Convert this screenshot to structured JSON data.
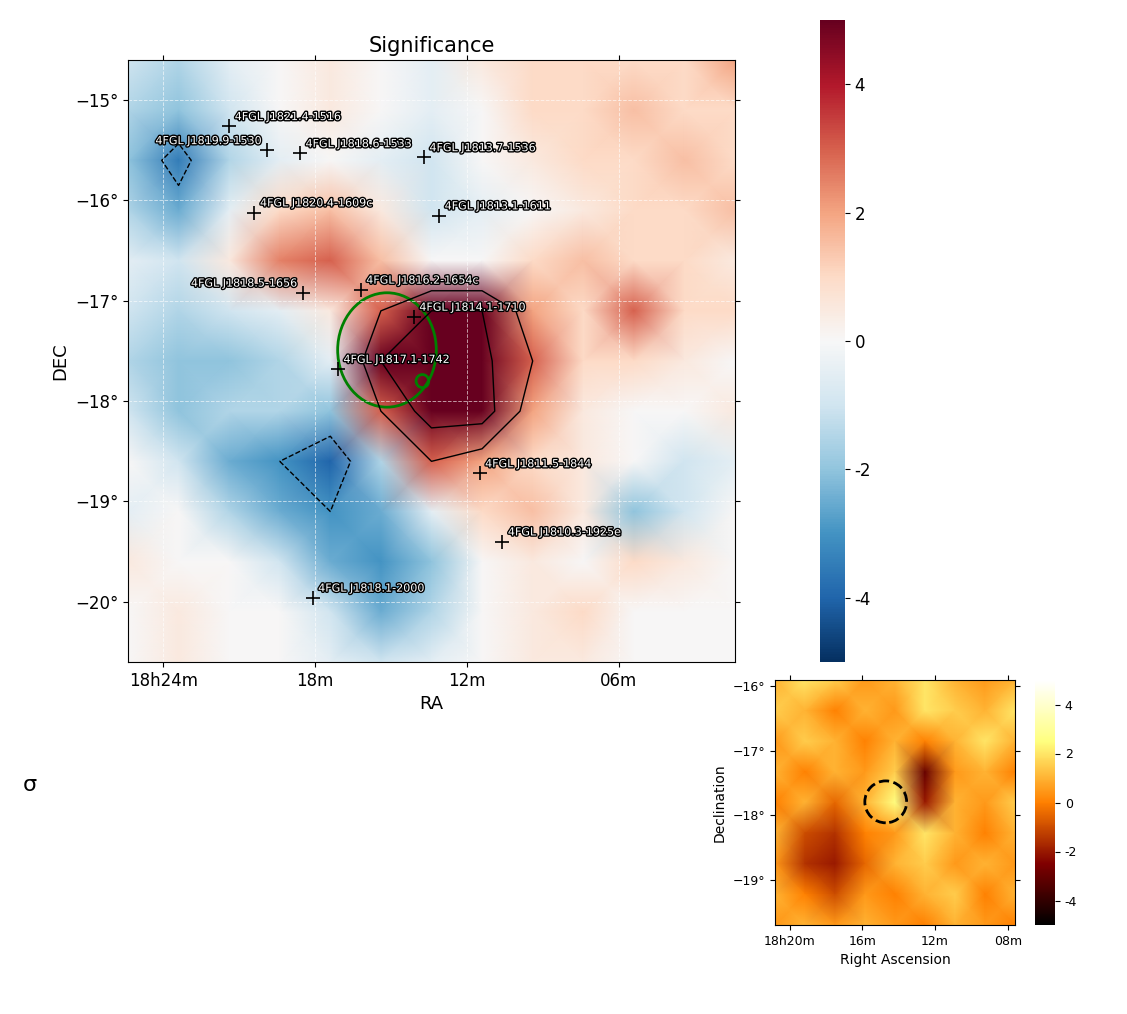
{
  "chart_data": [
    {
      "type": "heatmap",
      "title": "Significance",
      "x_label": "RA",
      "y_label": "DEC",
      "color": "RdBu_r",
      "grid": true,
      "annotations": [
        "σ"
      ],
      "xlim": [
        25.4,
        1.4
      ],
      "ylim": [
        -20.6,
        -14.6
      ],
      "xticks": [
        {
          "value": 24,
          "label": "18h24m"
        },
        {
          "value": 18,
          "label": "18m"
        },
        {
          "value": 12,
          "label": "12m"
        },
        {
          "value": 6,
          "label": "06m"
        }
      ],
      "yticks": [
        {
          "value": -15,
          "label": "−15°"
        },
        {
          "value": -16,
          "label": "−16°"
        },
        {
          "value": -17,
          "label": "−17°"
        },
        {
          "value": -18,
          "label": "−18°"
        },
        {
          "value": -19,
          "label": "−19°"
        },
        {
          "value": -20,
          "label": "−20°"
        }
      ],
      "x": [
        25.4,
        23.4,
        21.4,
        19.4,
        17.4,
        15.4,
        13.4,
        11.4,
        9.4,
        7.4,
        5.4,
        3.4,
        1.4
      ],
      "y": [
        -14.6,
        -15.1,
        -15.6,
        -16.1,
        -16.6,
        -17.1,
        -17.6,
        -18.1,
        -18.6,
        -19.1,
        -19.6,
        -20.1,
        -20.6
      ],
      "cells": [
        [
          -1,
          -1.5,
          -0.5,
          0,
          0.5,
          0,
          -0.5,
          0.5,
          1,
          1,
          1,
          1,
          2
        ],
        [
          -1.5,
          -2,
          -1,
          0,
          0.5,
          0,
          -0.5,
          0,
          1,
          1,
          1.5,
          1,
          1
        ],
        [
          -2,
          -3.5,
          -1.5,
          -0.5,
          0,
          -0.5,
          -1,
          0,
          0.5,
          1,
          1,
          1.5,
          1
        ],
        [
          -1.5,
          -2.5,
          -0.5,
          1,
          1.5,
          0.5,
          -1,
          -0.5,
          0,
          0.5,
          1,
          1,
          1.5
        ],
        [
          -0.5,
          -1,
          0.5,
          2.5,
          3,
          1.5,
          0,
          0,
          1,
          1.5,
          1,
          1,
          0.5
        ],
        [
          -1,
          -1.5,
          -1,
          -0.5,
          0.5,
          3,
          5,
          5,
          2,
          1,
          3,
          1,
          1
        ],
        [
          -1.5,
          -2,
          -2,
          -1.5,
          -0.5,
          5,
          6,
          5.5,
          3,
          1,
          1,
          0.5,
          0
        ],
        [
          -1,
          -2,
          -1.5,
          -1.5,
          -2,
          3,
          6,
          6,
          2,
          0.5,
          0,
          0,
          0.5
        ],
        [
          0,
          -1,
          -2.5,
          -3,
          -4,
          -1.5,
          3,
          2,
          1,
          0.5,
          0,
          -1,
          -0.5
        ],
        [
          -0.5,
          0,
          -1.5,
          -2.5,
          -3,
          -2.5,
          -0.5,
          1,
          1.5,
          0.5,
          -2,
          -1,
          0
        ],
        [
          0.5,
          0,
          0,
          -1,
          -2.5,
          -3,
          -2,
          0,
          0.5,
          0,
          1,
          0.5,
          0
        ],
        [
          0,
          0.5,
          0,
          0,
          -1,
          -2.5,
          -1.5,
          0,
          0.5,
          1,
          0,
          0,
          0
        ],
        [
          0,
          0.5,
          0,
          0,
          -0.5,
          -1,
          -0.5,
          0,
          0.5,
          0.5,
          0,
          0,
          0
        ]
      ],
      "colorbar_range": [
        -5,
        5
      ],
      "colorbar_ticks": [
        -4,
        -2,
        0,
        2,
        4
      ],
      "contour_levels": [
        -3,
        3,
        5
      ],
      "sources": {
        "marker": "+",
        "color": "black",
        "points": [
          {
            "name": "4FGL J1821.4-1516",
            "x": 21.4,
            "y": -15.26
          },
          {
            "name": "4FGL J1819.9-1530",
            "x": 19.9,
            "y": -15.5
          },
          {
            "name": "4FGL J1818.6-1533",
            "x": 18.6,
            "y": -15.53
          },
          {
            "name": "4FGL J1813.7-1536",
            "x": 13.7,
            "y": -15.57
          },
          {
            "name": "4FGL J1820.4-1609c",
            "x": 20.4,
            "y": -16.12
          },
          {
            "name": "4FGL J1813.1-1611",
            "x": 13.1,
            "y": -16.15
          },
          {
            "name": "4FGL J1818.5-1656",
            "x": 18.5,
            "y": -16.92
          },
          {
            "name": "4FGL J1816.2-1654c",
            "x": 16.2,
            "y": -16.89
          },
          {
            "name": "4FGL J1814.1-1710",
            "x": 14.1,
            "y": -17.16
          },
          {
            "name": "4FGL J1817.1-1742",
            "x": 17.1,
            "y": -17.68
          },
          {
            "name": "4FGL J1811.5-1844",
            "x": 11.5,
            "y": -18.72
          },
          {
            "name": "4FGL J1810.3-1925e",
            "x": 10.6,
            "y": -19.4
          },
          {
            "name": "4FGL J1818.1-2000",
            "x": 18.1,
            "y": -19.96
          }
        ]
      },
      "regions": [
        {
          "x": 15.16,
          "y": -17.49,
          "width": 3.9,
          "height": 1.14,
          "color": "green",
          "line_style": "solid"
        },
        {
          "x": 13.76,
          "y": -17.8,
          "width": 0.5,
          "height": 0.13,
          "color": "green",
          "line_style": "solid"
        }
      ]
    },
    {
      "type": "heatmap",
      "x_label": "Right Ascension",
      "y_label": "Declination",
      "color": "afmhot",
      "grid": false,
      "xlim": [
        20.8,
        7.6
      ],
      "ylim": [
        -19.7,
        -15.9
      ],
      "xticks": [
        {
          "value": 20,
          "label": "18h20m"
        },
        {
          "value": 16,
          "label": "16m"
        },
        {
          "value": 12,
          "label": "12m"
        },
        {
          "value": 8,
          "label": "08m"
        }
      ],
      "yticks": [
        {
          "value": -16,
          "label": "−16°"
        },
        {
          "value": -17,
          "label": "−17°"
        },
        {
          "value": -18,
          "label": "−18°"
        },
        {
          "value": -19,
          "label": "−19°"
        }
      ],
      "x": [
        20.8,
        19.15,
        17.5,
        15.85,
        14.2,
        12.55,
        10.9,
        9.25,
        7.6
      ],
      "y": [
        -15.9,
        -16.375,
        -16.85,
        -17.325,
        -17.8,
        -18.275,
        -18.75,
        -19.225,
        -19.7
      ],
      "cells": [
        [
          1,
          2,
          1.5,
          0.5,
          1,
          2,
          1,
          0.5,
          1
        ],
        [
          1.5,
          1,
          0,
          1,
          0.5,
          2,
          1.5,
          1,
          2
        ],
        [
          0.5,
          1.5,
          1,
          0,
          1,
          0,
          1,
          2,
          1
        ],
        [
          1,
          0,
          1,
          0.5,
          1.5,
          -3,
          0.5,
          1,
          0
        ],
        [
          0,
          1,
          -0.5,
          1,
          2.5,
          -2,
          1,
          0.5,
          1.5
        ],
        [
          1,
          -1,
          -1.5,
          0,
          0.5,
          2,
          1,
          0,
          1
        ],
        [
          0.5,
          -1.5,
          -2,
          -0.5,
          1,
          1.5,
          0.5,
          1,
          0.5
        ],
        [
          1,
          0,
          -1,
          0.5,
          0,
          1,
          1.5,
          0,
          1
        ],
        [
          0.5,
          1,
          0.5,
          1,
          0.5,
          0,
          1,
          0.5,
          0
        ]
      ],
      "colorbar_range": [
        -5,
        5
      ],
      "colorbar_ticks": [
        -4,
        -2,
        0,
        2,
        4
      ],
      "regions": [
        {
          "x": 14.71,
          "y": -17.79,
          "width": 2.3,
          "height": 0.65,
          "color": "black",
          "line_style": "dashed"
        }
      ]
    }
  ]
}
